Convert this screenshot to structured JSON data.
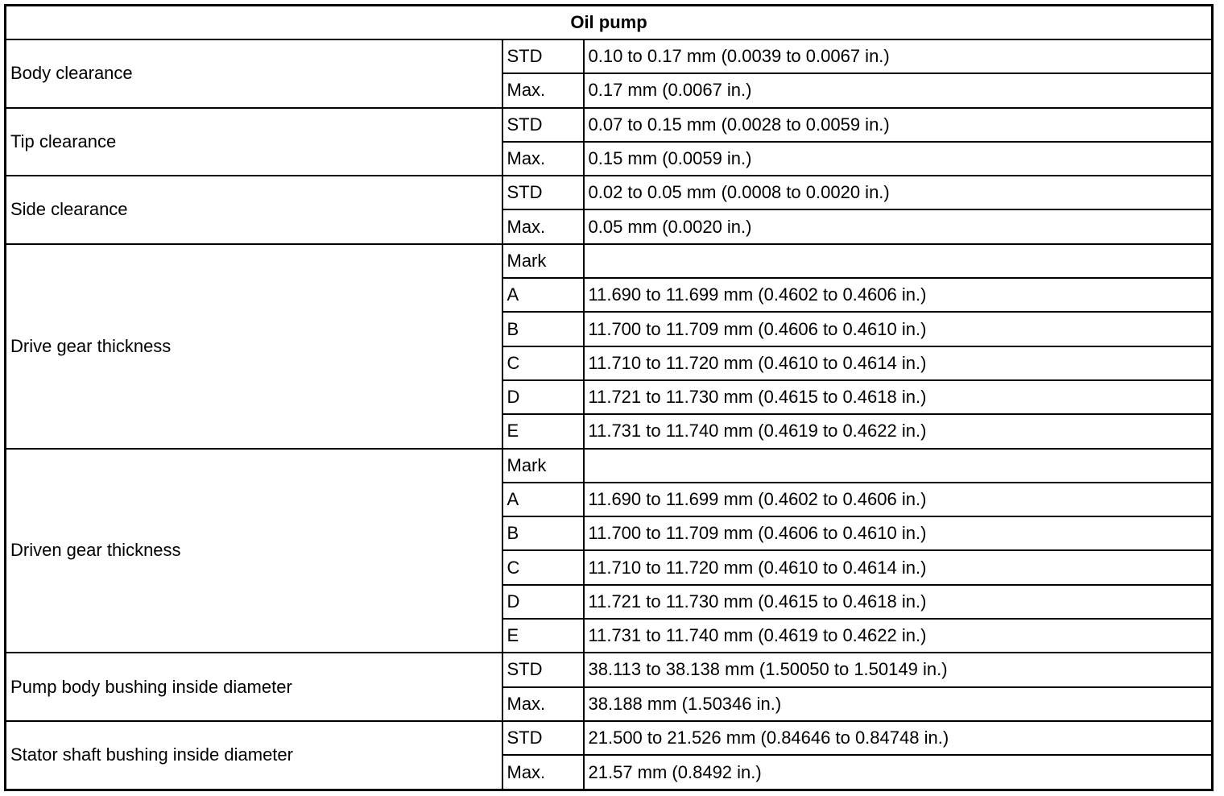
{
  "title": "Oil pump",
  "sections": [
    {
      "label": "Body clearance",
      "rows": [
        {
          "key": "STD",
          "value": "0.10 to 0.17 mm (0.0039 to 0.0067 in.)"
        },
        {
          "key": "Max.",
          "value": "0.17 mm (0.0067 in.)"
        }
      ]
    },
    {
      "label": "Tip clearance",
      "rows": [
        {
          "key": "STD",
          "value": "0.07 to 0.15 mm (0.0028 to 0.0059 in.)"
        },
        {
          "key": "Max.",
          "value": "0.15 mm (0.0059 in.)"
        }
      ]
    },
    {
      "label": "Side clearance",
      "rows": [
        {
          "key": "STD",
          "value": "0.02 to 0.05 mm (0.0008 to 0.0020 in.)"
        },
        {
          "key": "Max.",
          "value": "0.05 mm (0.0020 in.)"
        }
      ]
    },
    {
      "label": "Drive gear thickness",
      "rows": [
        {
          "key": "Mark",
          "value": ""
        },
        {
          "key": "A",
          "value": "11.690 to 11.699 mm (0.4602 to 0.4606 in.)"
        },
        {
          "key": "B",
          "value": "11.700 to 11.709 mm (0.4606 to 0.4610 in.)"
        },
        {
          "key": "C",
          "value": "11.710 to 11.720 mm (0.4610 to 0.4614 in.)"
        },
        {
          "key": "D",
          "value": "11.721 to 11.730 mm (0.4615 to 0.4618 in.)"
        },
        {
          "key": "E",
          "value": "11.731 to 11.740 mm (0.4619 to 0.4622 in.)"
        }
      ]
    },
    {
      "label": "Driven gear thickness",
      "rows": [
        {
          "key": "Mark",
          "value": ""
        },
        {
          "key": "A",
          "value": "11.690 to 11.699 mm (0.4602 to 0.4606 in.)"
        },
        {
          "key": "B",
          "value": "11.700 to 11.709 mm (0.4606 to 0.4610 in.)"
        },
        {
          "key": "C",
          "value": "11.710 to 11.720 mm (0.4610 to 0.4614 in.)"
        },
        {
          "key": "D",
          "value": "11.721 to 11.730 mm (0.4615 to 0.4618 in.)"
        },
        {
          "key": "E",
          "value": "11.731 to 11.740 mm (0.4619 to 0.4622 in.)"
        }
      ]
    },
    {
      "label": "Pump body bushing inside diameter",
      "rows": [
        {
          "key": "STD",
          "value": "38.113 to 38.138 mm (1.50050 to 1.50149 in.)"
        },
        {
          "key": "Max.",
          "value": "38.188 mm (1.50346 in.)"
        }
      ]
    },
    {
      "label": "Stator shaft bushing inside diameter",
      "rows": [
        {
          "key": "STD",
          "value": "21.500 to 21.526 mm (0.84646 to 0.84748 in.)"
        },
        {
          "key": "Max.",
          "value": "21.57 mm (0.8492 in.)"
        }
      ]
    }
  ]
}
